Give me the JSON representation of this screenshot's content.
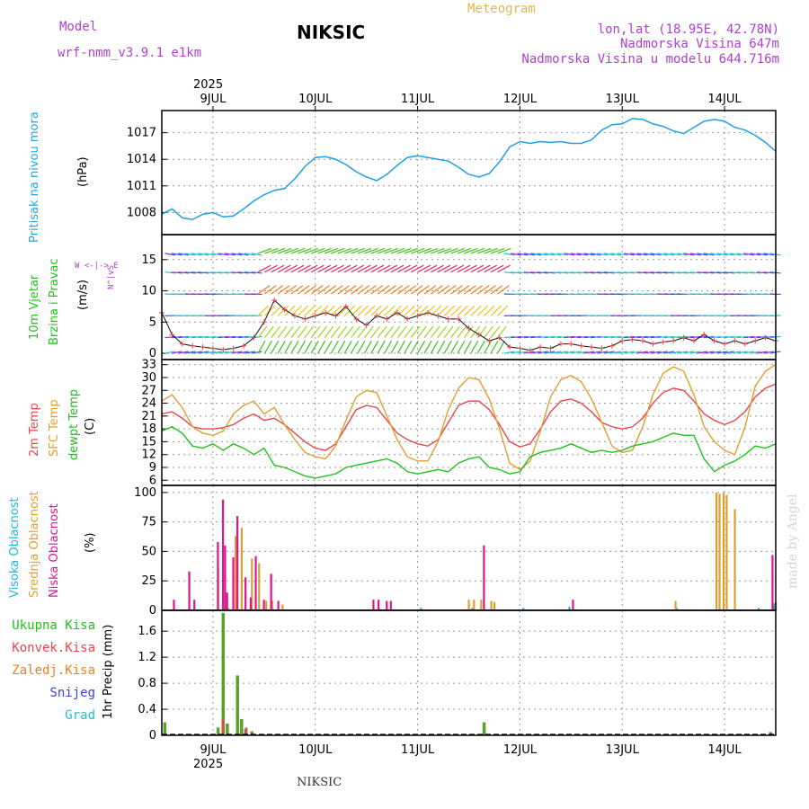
{
  "header": {
    "model_label": "Model",
    "model_name": "wrf-nmm_v3.9.1 e1km",
    "station": "NIKSIC",
    "title": "Meteogram",
    "lonlat": "lon,lat (18.95E, 42.78N)",
    "elevation": "Nadmorska Visina 647m",
    "model_elevation": "Nadmorska Visina u modelu 644.716m"
  },
  "time_axis": {
    "year_label": "2025",
    "day_labels": [
      "9JUL",
      "10JUL",
      "11JUL",
      "12JUL",
      "13JUL",
      "14JUL"
    ]
  },
  "footer": {
    "station": "NIKSIC",
    "credit": "made by Angel"
  },
  "colors": {
    "pressure": "#1ea0e6",
    "temp2m": "#e8464b",
    "sfc_temp": "#e0a030",
    "dewpt": "#21c21e",
    "high_cloud": "#22b5e0",
    "mid_cloud": "#e0a030",
    "low_cloud": "#e0148c",
    "total_precip": "#5ca22a",
    "conv_precip": "#e8464b",
    "frozen": "#f0801e",
    "snow": "#4040e0",
    "graupel": "#20c0c0",
    "title_purple": "#b040d0",
    "meteogram_orange": "#e6b450"
  },
  "panels": {
    "pressure": {
      "label_main": "Pritisak na nivou mora",
      "unit": "(hPa)"
    },
    "wind": {
      "label_a": "10m Vjetar",
      "label_b": "Brzina i Pravac",
      "unit": "(m/s)",
      "compass": "W <-|-> E",
      "compass_v": "N^|vS"
    },
    "temp": {
      "label_a": "2m Temp",
      "label_b": "SFC Temp",
      "label_c": "dewpt Temp",
      "unit": "(C)"
    },
    "cloud": {
      "label_a": "Visoka Oblacnost",
      "label_b": "Srednja Oblacnost",
      "label_c": "Niska Oblacnost",
      "unit": "(%)"
    },
    "precip": {
      "legend": [
        "Ukupna Kisa",
        "Konvek.Kisa",
        "Zaledj.Kisa",
        "Snijeg",
        "Grad"
      ],
      "unit": "1hr Precip (mm)"
    }
  },
  "chart_data": [
    {
      "type": "line",
      "title": "Pritisak na nivou mora",
      "ylabel": "(hPa)",
      "ylim": [
        1005.5,
        1019.5
      ],
      "yticks": [
        1008,
        1011,
        1014,
        1017
      ],
      "x": [
        8.5,
        8.6,
        8.7,
        8.8,
        8.9,
        9.0,
        9.1,
        9.2,
        9.3,
        9.4,
        9.5,
        9.6,
        9.7,
        9.8,
        9.9,
        10.0,
        10.1,
        10.2,
        10.3,
        10.4,
        10.5,
        10.6,
        10.7,
        10.8,
        10.9,
        11.0,
        11.1,
        11.2,
        11.3,
        11.4,
        11.5,
        11.6,
        11.7,
        11.8,
        11.9,
        12.0,
        12.1,
        12.2,
        12.3,
        12.4,
        12.5,
        12.6,
        12.7,
        12.8,
        12.9,
        13.0,
        13.1,
        13.2,
        13.3,
        13.4,
        13.5,
        13.6,
        13.7,
        13.8,
        13.9,
        14.0,
        14.1,
        14.2,
        14.3,
        14.4,
        14.5
      ],
      "series": [
        {
          "values": [
            1007.8,
            1008.4,
            1007.4,
            1007.2,
            1007.8,
            1008.0,
            1007.5,
            1007.6,
            1008.4,
            1009.3,
            1010.0,
            1010.5,
            1010.7,
            1011.8,
            1013.2,
            1014.2,
            1014.3,
            1014.0,
            1013.4,
            1012.6,
            1012.0,
            1011.6,
            1012.3,
            1013.3,
            1014.2,
            1014.4,
            1014.2,
            1014.0,
            1013.8,
            1013.1,
            1012.3,
            1012.0,
            1012.4,
            1013.7,
            1015.4,
            1016.0,
            1015.8,
            1016.0,
            1015.9,
            1016.0,
            1015.8,
            1015.8,
            1016.2,
            1017.3,
            1017.9,
            1018.0,
            1018.6,
            1018.5,
            1018.0,
            1017.7,
            1017.2,
            1016.9,
            1017.6,
            1018.3,
            1018.5,
            1018.3,
            1017.6,
            1017.3,
            1016.7,
            1015.9,
            1014.9
          ]
        }
      ]
    },
    {
      "type": "line",
      "title": "10m Vjetar Brzina i Pravac",
      "ylabel": "(m/s)",
      "ylim": [
        -1,
        19
      ],
      "yticks": [
        0,
        5,
        10,
        15
      ],
      "x": [
        8.5,
        8.6,
        8.7,
        8.8,
        8.9,
        9.0,
        9.1,
        9.2,
        9.3,
        9.4,
        9.5,
        9.6,
        9.7,
        9.8,
        9.9,
        10.0,
        10.1,
        10.2,
        10.3,
        10.4,
        10.5,
        10.6,
        10.7,
        10.8,
        10.9,
        11.0,
        11.1,
        11.2,
        11.3,
        11.4,
        11.5,
        11.6,
        11.7,
        11.8,
        11.9,
        12.0,
        12.1,
        12.2,
        12.3,
        12.4,
        12.5,
        12.6,
        12.7,
        12.8,
        12.9,
        13.0,
        13.1,
        13.2,
        13.3,
        13.4,
        13.5,
        13.6,
        13.7,
        13.8,
        13.9,
        14.0,
        14.1,
        14.2,
        14.3,
        14.4,
        14.5
      ],
      "series": [
        {
          "name": "speed",
          "values": [
            6.5,
            3.0,
            1.5,
            1.2,
            1.0,
            0.8,
            0.6,
            0.8,
            1.2,
            2.5,
            5.0,
            8.5,
            7.0,
            6.0,
            5.5,
            6.0,
            6.5,
            6.0,
            7.5,
            5.5,
            4.5,
            6.0,
            5.5,
            6.5,
            5.5,
            6.0,
            6.5,
            6.0,
            5.5,
            5.5,
            4.0,
            3.0,
            2.0,
            2.5,
            1.0,
            0.8,
            0.5,
            1.0,
            0.8,
            1.5,
            1.5,
            1.2,
            1.0,
            0.8,
            1.2,
            2.0,
            2.2,
            2.0,
            1.5,
            1.8,
            2.0,
            2.5,
            2.0,
            3.0,
            2.0,
            1.5,
            2.0,
            1.5,
            2.0,
            2.5,
            2.0
          ]
        }
      ]
    },
    {
      "type": "line",
      "title": "2m Temp / SFC Temp / dewpt Temp",
      "ylabel": "(C)",
      "ylim": [
        4.8,
        34.2
      ],
      "yticks": [
        6,
        9,
        12,
        15,
        18,
        21,
        24,
        27,
        30,
        33
      ],
      "x": [
        8.5,
        8.6,
        8.7,
        8.8,
        8.9,
        9.0,
        9.1,
        9.2,
        9.3,
        9.4,
        9.5,
        9.6,
        9.7,
        9.8,
        9.9,
        10.0,
        10.1,
        10.2,
        10.3,
        10.4,
        10.5,
        10.6,
        10.7,
        10.8,
        10.9,
        11.0,
        11.1,
        11.2,
        11.3,
        11.4,
        11.5,
        11.6,
        11.7,
        11.8,
        11.9,
        12.0,
        12.1,
        12.2,
        12.3,
        12.4,
        12.5,
        12.6,
        12.7,
        12.8,
        12.9,
        13.0,
        13.1,
        13.2,
        13.3,
        13.4,
        13.5,
        13.6,
        13.7,
        13.8,
        13.9,
        14.0,
        14.1,
        14.2,
        14.3,
        14.4,
        14.5
      ],
      "series": [
        {
          "name": "2m Temp",
          "values": [
            21.5,
            22.0,
            20.5,
            18.5,
            18.0,
            18.0,
            18.3,
            19.0,
            20.5,
            21.5,
            20.0,
            20.5,
            19.0,
            17.0,
            15.0,
            13.5,
            13.0,
            14.5,
            18.5,
            22.5,
            23.5,
            23.0,
            20.0,
            17.0,
            15.5,
            14.5,
            14.0,
            15.5,
            19.5,
            23.5,
            24.5,
            24.5,
            22.5,
            19.0,
            15.0,
            13.8,
            14.5,
            18.0,
            22.0,
            24.5,
            25.0,
            24.0,
            22.0,
            19.5,
            18.5,
            18.0,
            18.5,
            20.5,
            24.0,
            26.5,
            27.5,
            27.0,
            24.5,
            21.5,
            20.0,
            19.0,
            20.0,
            22.0,
            25.5,
            27.5,
            28.5
          ]
        },
        {
          "name": "SFC Temp",
          "values": [
            24.5,
            26.0,
            23.0,
            18.5,
            17.0,
            16.5,
            17.5,
            21.5,
            23.5,
            24.5,
            21.5,
            23.0,
            19.0,
            15.5,
            12.5,
            11.5,
            11.0,
            14.0,
            20.0,
            25.5,
            27.0,
            26.5,
            21.0,
            15.5,
            11.5,
            10.5,
            10.5,
            15.0,
            22.5,
            27.5,
            30.0,
            29.5,
            25.0,
            18.0,
            10.0,
            8.5,
            10.5,
            17.5,
            25.5,
            29.5,
            30.5,
            29.0,
            25.0,
            19.5,
            14.0,
            12.5,
            13.0,
            18.5,
            26.0,
            31.0,
            32.5,
            31.5,
            26.0,
            18.5,
            15.0,
            13.0,
            12.0,
            18.5,
            28.0,
            31.5,
            33.0
          ]
        },
        {
          "name": "dewpt Temp",
          "values": [
            17.5,
            18.5,
            17.0,
            14.0,
            13.5,
            14.5,
            13.0,
            14.5,
            13.5,
            12.0,
            13.5,
            9.5,
            9.0,
            8.0,
            7.0,
            6.5,
            7.0,
            7.5,
            9.0,
            9.5,
            10.0,
            10.5,
            11.0,
            10.0,
            8.0,
            7.5,
            8.0,
            8.5,
            8.0,
            10.0,
            11.0,
            11.5,
            9.0,
            8.5,
            7.5,
            8.0,
            11.5,
            12.5,
            13.0,
            13.5,
            14.5,
            13.5,
            12.5,
            13.0,
            12.5,
            13.0,
            14.0,
            14.5,
            15.0,
            16.0,
            17.0,
            16.5,
            16.5,
            11.0,
            8.0,
            9.5,
            10.5,
            12.0,
            14.0,
            13.5,
            14.5
          ]
        }
      ]
    },
    {
      "type": "bar",
      "title": "Visoka / Srednja / Niska Oblacnost",
      "ylabel": "(%)",
      "ylim": [
        0,
        106
      ],
      "yticks": [
        0,
        25,
        50,
        75,
        100
      ],
      "series": [
        {
          "name": "Visoka Oblacnost",
          "bars": [
            [
              11.05,
              2
            ],
            [
              11.55,
              2
            ],
            [
              12.05,
              2
            ],
            [
              12.5,
              3
            ],
            [
              13.55,
              2
            ],
            [
              14.35,
              2
            ],
            [
              14.5,
              6
            ]
          ]
        },
        {
          "name": "Srednja Oblacnost",
          "bars": [
            [
              9.05,
              36
            ],
            [
              9.15,
              2
            ],
            [
              9.22,
              63
            ],
            [
              9.28,
              70
            ],
            [
              9.38,
              44
            ],
            [
              9.45,
              40
            ],
            [
              9.52,
              8
            ],
            [
              9.58,
              8
            ],
            [
              9.68,
              5
            ],
            [
              11.5,
              9
            ],
            [
              11.55,
              9
            ],
            [
              11.62,
              9
            ],
            [
              11.72,
              8
            ],
            [
              11.75,
              7
            ],
            [
              13.52,
              8
            ],
            [
              13.92,
              100
            ],
            [
              13.95,
              99
            ],
            [
              13.99,
              100
            ],
            [
              14.02,
              98
            ],
            [
              14.1,
              86
            ],
            [
              14.5,
              7
            ]
          ]
        },
        {
          "name": "Niska Oblacnost",
          "bars": [
            [
              8.6,
              9
            ],
            [
              8.75,
              33
            ],
            [
              8.8,
              9
            ],
            [
              9.03,
              58
            ],
            [
              9.08,
              94
            ],
            [
              9.1,
              55
            ],
            [
              9.12,
              15
            ],
            [
              9.18,
              45
            ],
            [
              9.22,
              80
            ],
            [
              9.3,
              28
            ],
            [
              9.35,
              11
            ],
            [
              9.4,
              46
            ],
            [
              9.48,
              9
            ],
            [
              9.55,
              31
            ],
            [
              9.62,
              8
            ],
            [
              10.55,
              9
            ],
            [
              10.6,
              9
            ],
            [
              10.68,
              8
            ],
            [
              10.72,
              8
            ],
            [
              11.63,
              55
            ],
            [
              12.5,
              9
            ],
            [
              14.45,
              47
            ]
          ]
        }
      ]
    },
    {
      "type": "bar",
      "title": "1hr Precip",
      "ylabel": "1hr Precip (mm)",
      "ylim": [
        0,
        1.92
      ],
      "yticks": [
        0,
        0.4,
        0.8,
        1.2,
        1.6
      ],
      "series": [
        {
          "name": "Ukupna Kisa",
          "bars": [
            [
              8.53,
              0.2
            ],
            [
              9.05,
              0.12
            ],
            [
              9.1,
              1.88
            ],
            [
              9.14,
              0.18
            ],
            [
              9.24,
              0.92
            ],
            [
              9.28,
              0.25
            ],
            [
              9.32,
              0.1
            ],
            [
              9.38,
              0.06
            ],
            [
              11.65,
              0.2
            ],
            [
              14.45,
              0.05
            ]
          ]
        },
        {
          "name": "Konvek.Kisa",
          "bars": [
            [
              9.07,
              0.25
            ],
            [
              9.3,
              0.12
            ],
            [
              9.36,
              0.04
            ]
          ]
        },
        {
          "name": "Zaledj.Kisa",
          "bars": []
        },
        {
          "name": "Snijeg",
          "bars": []
        },
        {
          "name": "Grad",
          "bars": []
        }
      ]
    }
  ]
}
